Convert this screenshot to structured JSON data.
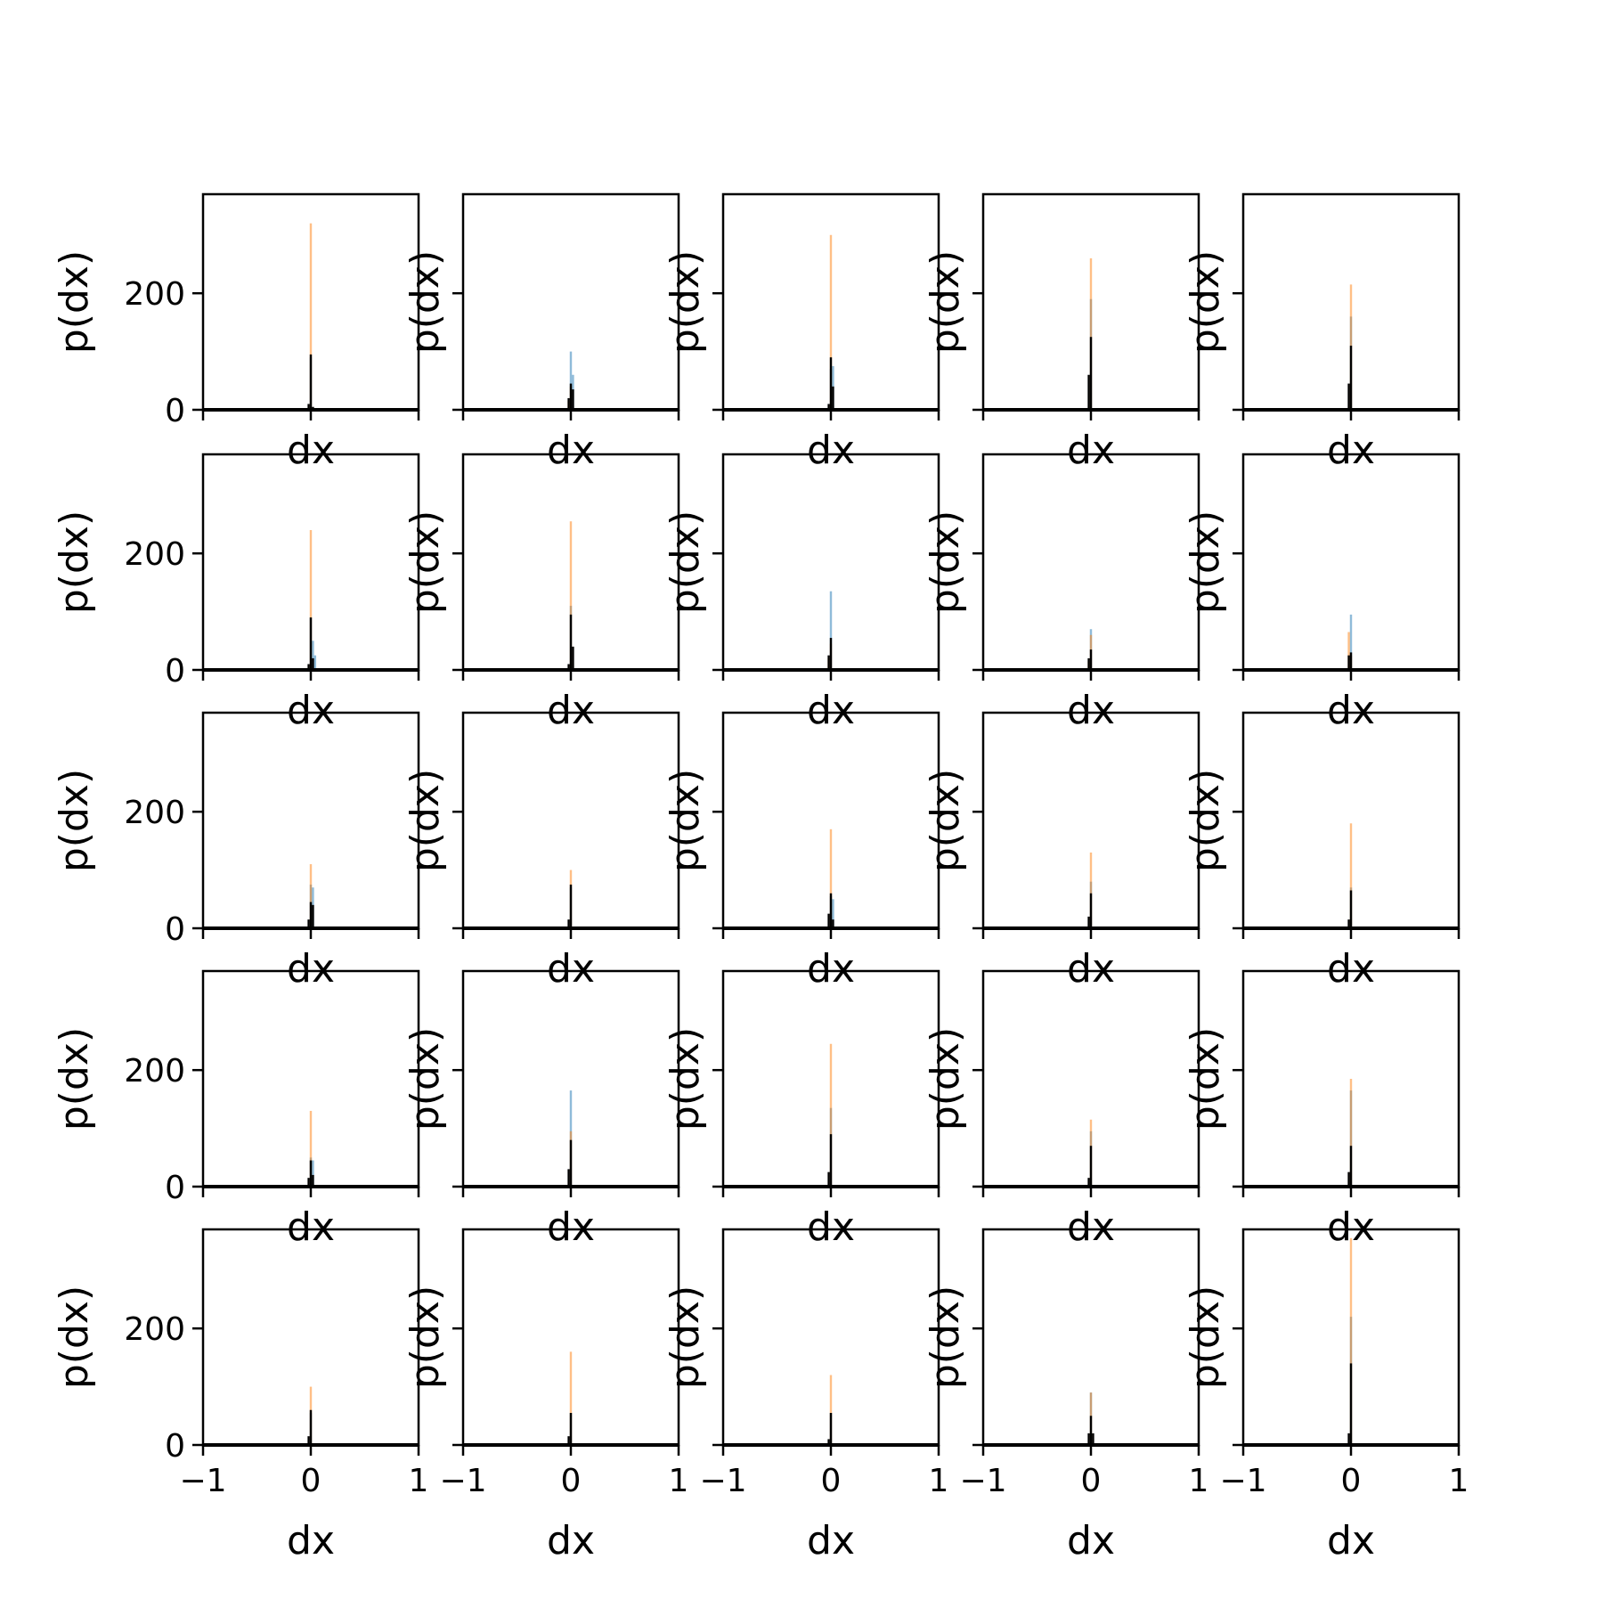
{
  "colors": {
    "series_blue": "#1f77b4",
    "series_orange": "#ff7f0e",
    "series_black": "#000000",
    "axes": "#000000",
    "background": "#ffffff"
  },
  "chart_data": {
    "type": "bar",
    "description_of_layout": "5 by 5 grid of small histogram panels with shared axes",
    "xlabel": "dx",
    "ylabel": "p(dx)",
    "xlim": [
      -1,
      1
    ],
    "ylim": [
      0,
      370
    ],
    "x_ticks": [
      -1,
      0,
      1
    ],
    "x_tick_labels": [
      "−1",
      "0",
      "1"
    ],
    "y_ticks": [
      0,
      200
    ],
    "y_tick_labels": [
      "0",
      "200"
    ],
    "grid": false,
    "histogram_bins": [
      -0.03,
      -0.01,
      0.01,
      0.03,
      0.05,
      0.07
    ],
    "panels": [
      {
        "row": 1,
        "col": 1,
        "orange": [
          0,
          320,
          0,
          0,
          0
        ],
        "blue": [
          0,
          90,
          0,
          0,
          0
        ],
        "black": [
          10,
          95,
          5,
          0,
          0
        ]
      },
      {
        "row": 1,
        "col": 2,
        "orange": [
          15,
          40,
          0,
          0,
          0
        ],
        "blue": [
          0,
          100,
          60,
          0,
          0
        ],
        "black": [
          20,
          45,
          35,
          0,
          0
        ]
      },
      {
        "row": 1,
        "col": 3,
        "orange": [
          0,
          300,
          0,
          0,
          0
        ],
        "blue": [
          0,
          70,
          75,
          0,
          0
        ],
        "black": [
          10,
          90,
          40,
          0,
          0
        ]
      },
      {
        "row": 1,
        "col": 4,
        "orange": [
          0,
          260,
          0,
          0,
          0
        ],
        "blue": [
          0,
          190,
          0,
          0,
          0
        ],
        "black": [
          60,
          125,
          0,
          0,
          0
        ]
      },
      {
        "row": 1,
        "col": 5,
        "orange": [
          0,
          215,
          0,
          0,
          0
        ],
        "blue": [
          0,
          160,
          0,
          0,
          0
        ],
        "black": [
          45,
          110,
          0,
          0,
          0
        ]
      },
      {
        "row": 2,
        "col": 1,
        "orange": [
          0,
          240,
          0,
          0,
          0
        ],
        "blue": [
          0,
          90,
          50,
          25,
          0
        ],
        "black": [
          10,
          90,
          20,
          0,
          0
        ]
      },
      {
        "row": 2,
        "col": 2,
        "orange": [
          0,
          255,
          0,
          0,
          0
        ],
        "blue": [
          0,
          110,
          0,
          0,
          0
        ],
        "black": [
          10,
          95,
          40,
          0,
          0
        ]
      },
      {
        "row": 2,
        "col": 3,
        "orange": [
          20,
          45,
          0,
          0,
          0
        ],
        "blue": [
          0,
          135,
          0,
          0,
          0
        ],
        "black": [
          25,
          55,
          0,
          0,
          0
        ]
      },
      {
        "row": 2,
        "col": 4,
        "orange": [
          15,
          60,
          0,
          0,
          0
        ],
        "blue": [
          0,
          70,
          0,
          0,
          0
        ],
        "black": [
          20,
          35,
          0,
          0,
          0
        ]
      },
      {
        "row": 2,
        "col": 5,
        "orange": [
          65,
          25,
          0,
          0,
          0
        ],
        "blue": [
          0,
          95,
          0,
          0,
          0
        ],
        "black": [
          25,
          30,
          0,
          0,
          0
        ]
      },
      {
        "row": 3,
        "col": 1,
        "orange": [
          0,
          110,
          0,
          0,
          0
        ],
        "blue": [
          0,
          75,
          70,
          0,
          0
        ],
        "black": [
          15,
          45,
          40,
          0,
          0
        ]
      },
      {
        "row": 3,
        "col": 2,
        "orange": [
          0,
          100,
          0,
          0,
          0
        ],
        "blue": [
          0,
          70,
          0,
          0,
          0
        ],
        "black": [
          15,
          75,
          0,
          0,
          0
        ]
      },
      {
        "row": 3,
        "col": 3,
        "orange": [
          0,
          170,
          0,
          0,
          0
        ],
        "blue": [
          0,
          55,
          50,
          0,
          0
        ],
        "black": [
          25,
          60,
          15,
          0,
          0
        ]
      },
      {
        "row": 3,
        "col": 4,
        "orange": [
          0,
          130,
          0,
          0,
          0
        ],
        "blue": [
          0,
          80,
          0,
          0,
          0
        ],
        "black": [
          20,
          60,
          0,
          0,
          0
        ]
      },
      {
        "row": 3,
        "col": 5,
        "orange": [
          0,
          180,
          0,
          0,
          0
        ],
        "blue": [
          0,
          70,
          0,
          0,
          0
        ],
        "black": [
          15,
          65,
          0,
          0,
          0
        ]
      },
      {
        "row": 4,
        "col": 1,
        "orange": [
          0,
          130,
          0,
          0,
          0
        ],
        "blue": [
          0,
          50,
          45,
          0,
          0
        ],
        "black": [
          15,
          45,
          20,
          0,
          0
        ]
      },
      {
        "row": 4,
        "col": 2,
        "orange": [
          0,
          95,
          0,
          0,
          0
        ],
        "blue": [
          0,
          165,
          0,
          0,
          0
        ],
        "black": [
          30,
          80,
          0,
          0,
          0
        ]
      },
      {
        "row": 4,
        "col": 3,
        "orange": [
          0,
          245,
          0,
          0,
          0
        ],
        "blue": [
          0,
          135,
          0,
          0,
          0
        ],
        "black": [
          25,
          90,
          0,
          0,
          0
        ]
      },
      {
        "row": 4,
        "col": 4,
        "orange": [
          0,
          115,
          0,
          0,
          0
        ],
        "blue": [
          0,
          95,
          0,
          0,
          0
        ],
        "black": [
          15,
          70,
          0,
          0,
          0
        ]
      },
      {
        "row": 4,
        "col": 5,
        "orange": [
          0,
          185,
          0,
          0,
          0
        ],
        "blue": [
          0,
          165,
          0,
          0,
          0
        ],
        "black": [
          25,
          70,
          0,
          0,
          0
        ]
      },
      {
        "row": 5,
        "col": 1,
        "orange": [
          0,
          100,
          0,
          0,
          0
        ],
        "blue": [
          0,
          55,
          0,
          0,
          0
        ],
        "black": [
          15,
          60,
          0,
          0,
          0
        ]
      },
      {
        "row": 5,
        "col": 2,
        "orange": [
          0,
          160,
          0,
          0,
          0
        ],
        "blue": [
          0,
          55,
          0,
          0,
          0
        ],
        "black": [
          15,
          55,
          0,
          0,
          0
        ]
      },
      {
        "row": 5,
        "col": 3,
        "orange": [
          0,
          120,
          0,
          0,
          0
        ],
        "blue": [
          0,
          55,
          0,
          0,
          0
        ],
        "black": [
          10,
          55,
          0,
          0,
          0
        ]
      },
      {
        "row": 5,
        "col": 4,
        "orange": [
          0,
          90,
          0,
          0,
          0
        ],
        "blue": [
          0,
          90,
          0,
          0,
          0
        ],
        "black": [
          20,
          50,
          20,
          0,
          0
        ]
      },
      {
        "row": 5,
        "col": 5,
        "orange": [
          0,
          355,
          0,
          0,
          0
        ],
        "blue": [
          0,
          220,
          0,
          0,
          0
        ],
        "black": [
          20,
          140,
          0,
          0,
          0
        ]
      }
    ]
  }
}
